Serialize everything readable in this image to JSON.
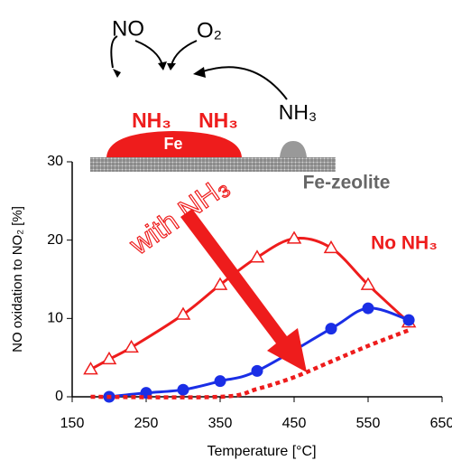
{
  "diagram": {
    "no": "NO",
    "o2": "O₂",
    "nh3_a": "NH₃",
    "nh3_b": "NH₃",
    "nh3_c": "NH₃",
    "fe": "Fe",
    "support": "Fe-zeolite"
  },
  "chart_data": {
    "type": "line",
    "xlabel": "Temperature [°C]",
    "ylabel": "NO oxidation to NO₂ [%]",
    "annotation": "with NH₃",
    "xlim": [
      150,
      650
    ],
    "xticks": [
      150,
      250,
      350,
      450,
      550,
      650
    ],
    "ylim": [
      0,
      30
    ],
    "yticks": [
      0,
      10,
      20,
      30
    ],
    "series": [
      {
        "name": "No NH₃",
        "color": "#ee1c1c",
        "marker": "triangle",
        "dash": "solid",
        "x": [
          175,
          200,
          230,
          300,
          350,
          400,
          450,
          500,
          550,
          605
        ],
        "values": [
          3.5,
          4.8,
          6.3,
          10.5,
          14.3,
          17.8,
          20.2,
          19,
          14.3,
          9.5
        ]
      },
      {
        "color": "#1a2ee6",
        "marker": "circle",
        "dash": "solid",
        "x": [
          200,
          250,
          300,
          350,
          400,
          500,
          550,
          605
        ],
        "values": [
          0,
          0.5,
          0.9,
          2,
          3.3,
          8.7,
          11.3,
          9.8
        ]
      },
      {
        "color": "#ee1c1c",
        "marker": "none",
        "dash": "dotted",
        "x": [
          175,
          350,
          400,
          450,
          500,
          550,
          605
        ],
        "values": [
          0,
          0,
          1,
          2.5,
          4.5,
          6.5,
          8.5
        ]
      }
    ]
  }
}
